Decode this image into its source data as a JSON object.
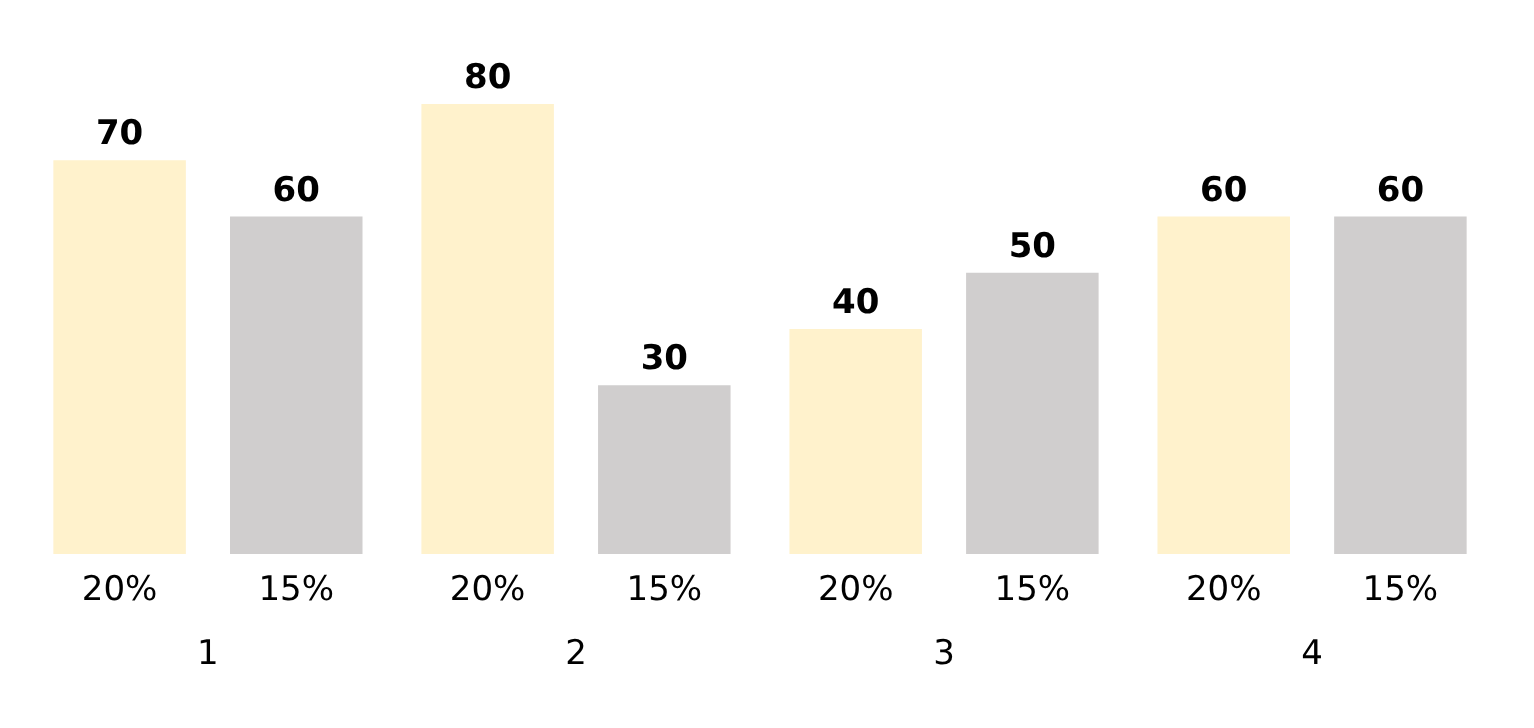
{
  "chart_data": {
    "type": "bar",
    "categories": [
      "1",
      "2",
      "3",
      "4"
    ],
    "series": [
      {
        "name": "20%",
        "color": "#fff2cc",
        "values": [
          70,
          80,
          40,
          60
        ]
      },
      {
        "name": "15%",
        "color": "#d0cece",
        "values": [
          60,
          30,
          50,
          60
        ]
      }
    ],
    "data_labels": true
  }
}
